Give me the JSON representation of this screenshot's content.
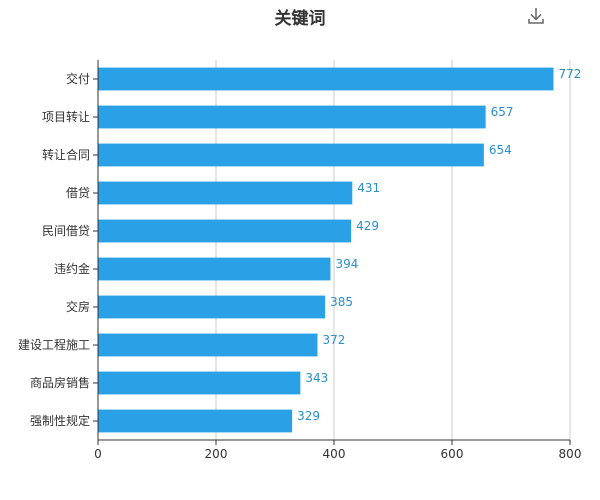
{
  "toolbar": {
    "download_icon": "download-icon"
  },
  "colors": {
    "bar": "#2aa0e6",
    "label": "#2a8ec9",
    "grid": "#cccccc",
    "axis": "#333333"
  },
  "chart_data": {
    "type": "bar",
    "orientation": "horizontal",
    "title": "关键词",
    "xlabel": "",
    "ylabel": "",
    "categories": [
      "交付",
      "项目转让",
      "转让合同",
      "借贷",
      "民间借贷",
      "违约金",
      "交房",
      "建设工程施工",
      "商品房销售",
      "强制性规定"
    ],
    "values": [
      772,
      657,
      654,
      431,
      429,
      394,
      385,
      372,
      343,
      329
    ],
    "xlim": [
      0,
      800
    ],
    "xticks": [
      "0",
      "200",
      "400",
      "600",
      "800"
    ],
    "grid": true,
    "legend": "none",
    "data_labels": true
  }
}
